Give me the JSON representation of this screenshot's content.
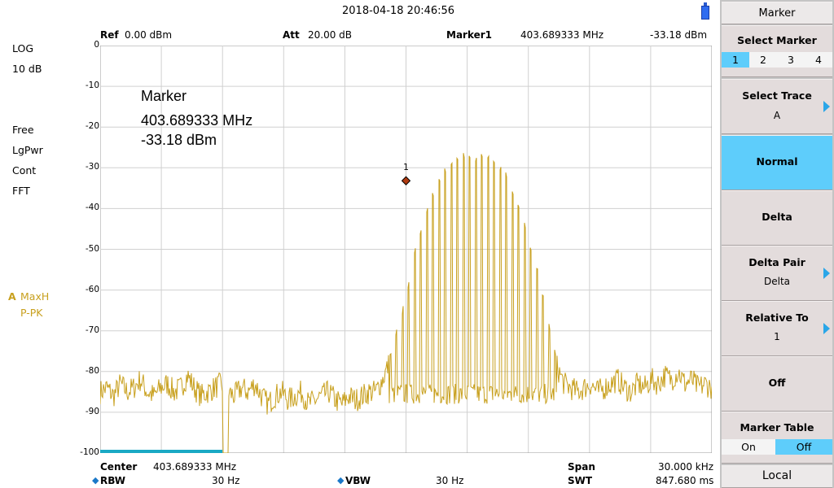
{
  "status_bar": {
    "datetime": "2018-04-18   20:46:56",
    "battery_icon": "usb-battery-icon"
  },
  "header": {
    "ref_label": "Ref",
    "ref_value": "0.00 dBm",
    "att_label": "Att",
    "att_value": "20.00 dB",
    "marker_label": "Marker1",
    "marker_freq": "403.689333 MHz",
    "marker_level": "-33.18 dBm"
  },
  "left_panel": {
    "scale_type": "LOG",
    "scale_div": "10 dB",
    "trigger": "Free",
    "detector_mode": "LgPwr",
    "sweep_mode": "Cont",
    "sweep_type": "FFT",
    "trace_letter": "A",
    "trace_mode": "MaxH",
    "trace_detector": "P-PK"
  },
  "marker_readout": {
    "title": "Marker",
    "freq": "403.689333 MHz",
    "level": "-33.18 dBm",
    "marker_number": "1"
  },
  "y_axis": {
    "ticks": [
      "0",
      "-10",
      "-20",
      "-30",
      "-40",
      "-50",
      "-60",
      "-70",
      "-80",
      "-90",
      "-100"
    ],
    "min": -100,
    "max": 0
  },
  "footer": {
    "center_label": "Center",
    "center_value": "403.689333 MHz",
    "span_label": "Span",
    "span_value": "30.000 kHz",
    "rbw_label": "RBW",
    "rbw_value": "30 Hz",
    "vbw_label": "VBW",
    "vbw_value": "30 Hz",
    "swt_label": "SWT",
    "swt_value": "847.680 ms"
  },
  "softkeys": {
    "menu_title": "Marker",
    "select_marker": {
      "label": "Select Marker",
      "options": [
        "1",
        "2",
        "3",
        "4"
      ],
      "selected": "1"
    },
    "select_trace": {
      "label": "Select Trace",
      "value": "A"
    },
    "normal": {
      "label": "Normal"
    },
    "delta": {
      "label": "Delta"
    },
    "delta_pair": {
      "label": "Delta Pair",
      "value": "Delta"
    },
    "relative_to": {
      "label": "Relative To",
      "value": "1"
    },
    "off": {
      "label": "Off"
    },
    "marker_table": {
      "label": "Marker Table",
      "options": [
        "On",
        "Off"
      ],
      "selected": "Off"
    },
    "local": {
      "label": "Local"
    }
  },
  "colors": {
    "trace": "#c8a01e",
    "accent": "#5ecdfb",
    "grid": "#d0d0d0",
    "marker": "#b03a10"
  },
  "chart_data": {
    "type": "line",
    "xlabel": "",
    "ylabel": "",
    "x_center": "403.689333 MHz",
    "x_span": "30.000 kHz",
    "ylim": [
      -100,
      0
    ],
    "grid": true,
    "marker": {
      "x_offset_divisions": 0,
      "y": -33.18
    },
    "series": [
      {
        "values": [
          -85,
          -84,
          -86,
          -83,
          -85,
          -84,
          -82,
          -85,
          -86,
          -84,
          -83,
          -85,
          -84,
          -81,
          -84,
          -86,
          -85,
          -84,
          -83,
          -85,
          -86,
          -84,
          -85,
          -83,
          -86,
          -88,
          -86,
          -85,
          -87,
          -86,
          -85,
          -88,
          -87,
          -86,
          -85,
          -87,
          -88,
          -86,
          -87,
          -86,
          -85,
          -85,
          -82,
          -78,
          -72,
          -66,
          -58,
          -50,
          -44,
          -40,
          -35,
          -32,
          -30,
          -29,
          -28,
          -28.5,
          -29,
          -28,
          -29,
          -30,
          -32,
          -35,
          -39,
          -44,
          -50,
          -56,
          -64,
          -72,
          -79,
          -83,
          -84,
          -85,
          -84,
          -83,
          -85,
          -84,
          -83,
          -82,
          -84,
          -85,
          -83,
          -84,
          -82,
          -83,
          -81,
          -82,
          -80,
          -83,
          -82,
          -84,
          -83,
          -84
        ]
      }
    ]
  }
}
